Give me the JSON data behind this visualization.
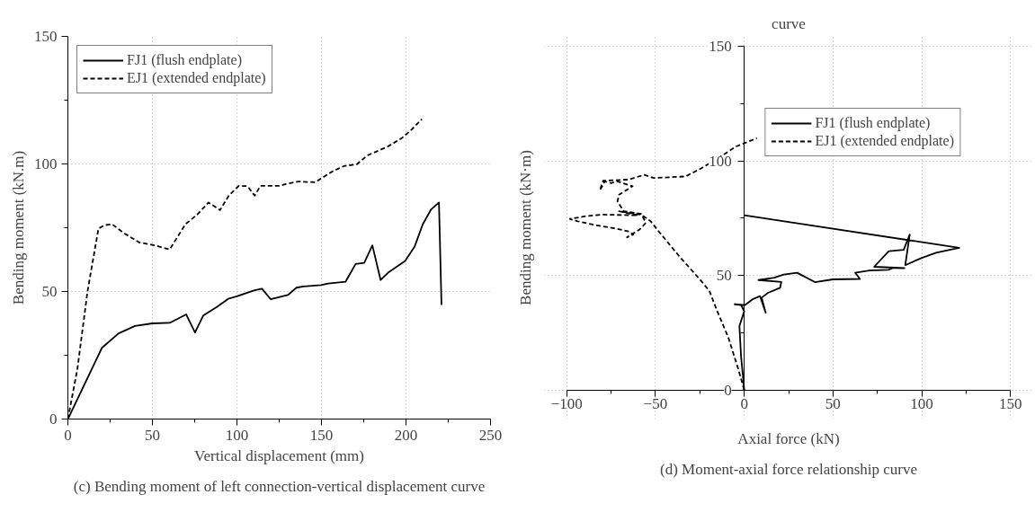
{
  "chart_data": [
    {
      "type": "line",
      "title": "(c) Bending moment of left connection-vertical displacement curve",
      "xlabel": "Vertical displacement (mm)",
      "ylabel": "Bending moment (kN.m)",
      "xlim": [
        0,
        250
      ],
      "ylim": [
        0,
        150
      ],
      "xticks": [
        0,
        50,
        100,
        150,
        200,
        250
      ],
      "yticks": [
        0,
        50,
        100,
        150
      ],
      "grid": true,
      "legend": "top left",
      "series": [
        {
          "name": "FJ1 (flush endplate)",
          "color": "#000000",
          "line_style": "solid",
          "x": [
            0,
            20.1,
            30,
            39.7,
            50,
            60.2,
            70,
            75.2,
            80.1,
            88.3,
            94.8,
            100.3,
            110.5,
            114.8,
            119.9,
            130.1,
            135.2,
            139.5,
            149.7,
            154,
            164.2,
            170.2,
            175.3,
            180.1,
            185,
            189.8,
            199.5,
            205.1,
            209.9,
            214.9,
            219.5,
            221
          ],
          "values": [
            0,
            27.9,
            33.6,
            36.5,
            37.5,
            37.7,
            41,
            33.9,
            40.6,
            44,
            47.1,
            48.2,
            50.5,
            51.1,
            47,
            48.6,
            51.5,
            52,
            52.5,
            53.1,
            53.8,
            60.8,
            61.2,
            68.1,
            54.5,
            57.6,
            62,
            67.6,
            76.3,
            82.2,
            84.9,
            44.7
          ]
        },
        {
          "name": "EJ1 (extended endplate)",
          "color": "#000000",
          "line_style": "dashed",
          "x": [
            0,
            5.6,
            11.6,
            18.1,
            21.8,
            26.1,
            33.8,
            42.3,
            50,
            60.2,
            69.6,
            76.4,
            83.2,
            90,
            95.2,
            101.1,
            106.2,
            110.5,
            113.9,
            125,
            128.4,
            136.1,
            146.3,
            156.5,
            163.4,
            171,
            177,
            188.9,
            197.5,
            203.4,
            209.4
          ],
          "values": [
            0,
            19.5,
            50,
            74.7,
            76,
            76.4,
            72.6,
            69.2,
            68.3,
            66.5,
            76.4,
            80.1,
            84.9,
            81.9,
            87.6,
            91.4,
            91.3,
            87.6,
            91.4,
            91.4,
            92,
            93.1,
            92.8,
            97.1,
            99.2,
            99.9,
            103.3,
            106.7,
            110.1,
            113.5,
            117.6
          ]
        }
      ]
    },
    {
      "type": "line",
      "title": "(d) Moment-axial force relationship curve",
      "xlabel": "Axial force (kN)",
      "ylabel": "Bending moment (kN·m)",
      "xlim": [
        -100,
        150
      ],
      "ylim": [
        0,
        150
      ],
      "xticks": [
        -100,
        -50,
        0,
        50,
        100,
        150
      ],
      "yticks": [
        0,
        50,
        100,
        150
      ],
      "grid": true,
      "legend": "top right",
      "annotations": [
        "curve"
      ],
      "series": [
        {
          "name": "FJ1 (flush endplate)",
          "color": "#000000",
          "line_style": "solid",
          "x": [
            0,
            -1.8,
            -2.7,
            0,
            -1.8,
            -5.4,
            0.5,
            4.5,
            8.9,
            12.1,
            9.8,
            13.4,
            20.2,
            20.9,
            8,
            17,
            22.3,
            29.8,
            39.8,
            50,
            65.2,
            62.5,
            70.5,
            81.3,
            83.9,
            90.2,
            73.2,
            81.4,
            89.8,
            93.2,
            90.7,
            100,
            108,
            121.1,
            0
          ],
          "values": [
            0,
            14.8,
            27.9,
            34.4,
            37.1,
            37.4,
            37.1,
            39.5,
            41,
            33.7,
            40.3,
            42.4,
            44.6,
            47.2,
            48,
            49,
            50.4,
            51.2,
            47.1,
            48.3,
            48.5,
            51.2,
            52.2,
            52.5,
            53.3,
            53.2,
            53.8,
            60.6,
            61.2,
            67.9,
            54.5,
            57.7,
            59.9,
            62.1,
            76.3
          ]
        },
        {
          "name": "EJ1 (extended endplate)",
          "color": "#000000",
          "line_style": "dashed",
          "x": [
            0,
            -3.6,
            -8.9,
            -15.2,
            -19.6,
            -24.1,
            -36.6,
            -48.2,
            -52.7,
            -58,
            -70.5,
            -59.8,
            -80.4,
            -89.3,
            -98.2,
            -93.8,
            -83,
            -72.3,
            -65.2,
            -62.5,
            -66,
            -58.9,
            -55.4,
            -58,
            -67.9,
            -71.4,
            -70.5,
            -62.9,
            -71.4,
            -75,
            -78.6,
            -81.3,
            -79.5,
            -65.2,
            -56.3,
            -50.9,
            -33,
            -24.1,
            -16.1,
            -4.5,
            7.1
          ],
          "values": [
            0,
            9.7,
            22.8,
            34.4,
            43.2,
            47.5,
            58.4,
            69.3,
            73.7,
            76.6,
            78.1,
            76.3,
            76.6,
            75.9,
            74.7,
            73.7,
            71.9,
            70.5,
            69.3,
            67.9,
            66.7,
            70.1,
            73,
            76.9,
            78.1,
            82.4,
            85.3,
            89,
            91.1,
            90.4,
            91.1,
            87.1,
            91.4,
            91.9,
            94,
            92.6,
            93.3,
            96.9,
            100.6,
            106.4,
            110
          ]
        }
      ]
    }
  ]
}
